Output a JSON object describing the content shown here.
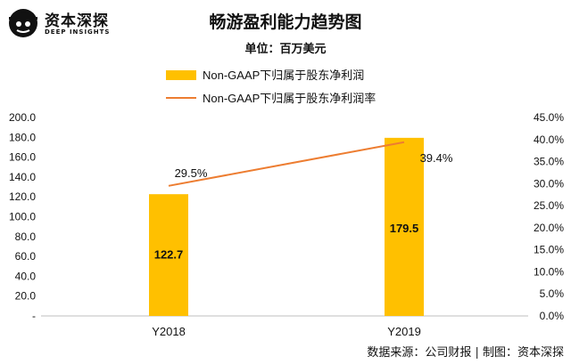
{
  "brand": {
    "name": "资本深探",
    "sub": "DEEP INSIGHTS"
  },
  "title": "畅游盈利能力趋势图",
  "subtitle": "单位：百万美元",
  "footer": "数据来源：公司财报 | 制图：资本深探",
  "colors": {
    "bar": "#FFC000",
    "line": "#ED7D31"
  },
  "chart_data": {
    "type": "bar",
    "categories": [
      "Y2018",
      "Y2019"
    ],
    "series": [
      {
        "name": "Non-GAAP下归属于股东净利润",
        "type": "bar",
        "axis": "left",
        "values": [
          122.7,
          179.5
        ],
        "labels": [
          "122.7",
          "179.5"
        ]
      },
      {
        "name": "Non-GAAP下归属于股东净利润率",
        "type": "line",
        "axis": "right",
        "values": [
          29.5,
          39.4
        ],
        "labels": [
          "29.5%",
          "39.4%"
        ]
      }
    ],
    "y_left": {
      "min": 0,
      "max": 200,
      "ticks": [
        "-",
        "20.0",
        "40.0",
        "60.0",
        "80.0",
        "100.0",
        "120.0",
        "140.0",
        "160.0",
        "180.0",
        "200.0"
      ]
    },
    "y_right": {
      "min": 0,
      "max": 45,
      "ticks": [
        "0.0%",
        "5.0%",
        "10.0%",
        "15.0%",
        "20.0%",
        "25.0%",
        "30.0%",
        "35.0%",
        "40.0%",
        "45.0%"
      ]
    },
    "legend_position": "top",
    "grid": false
  }
}
